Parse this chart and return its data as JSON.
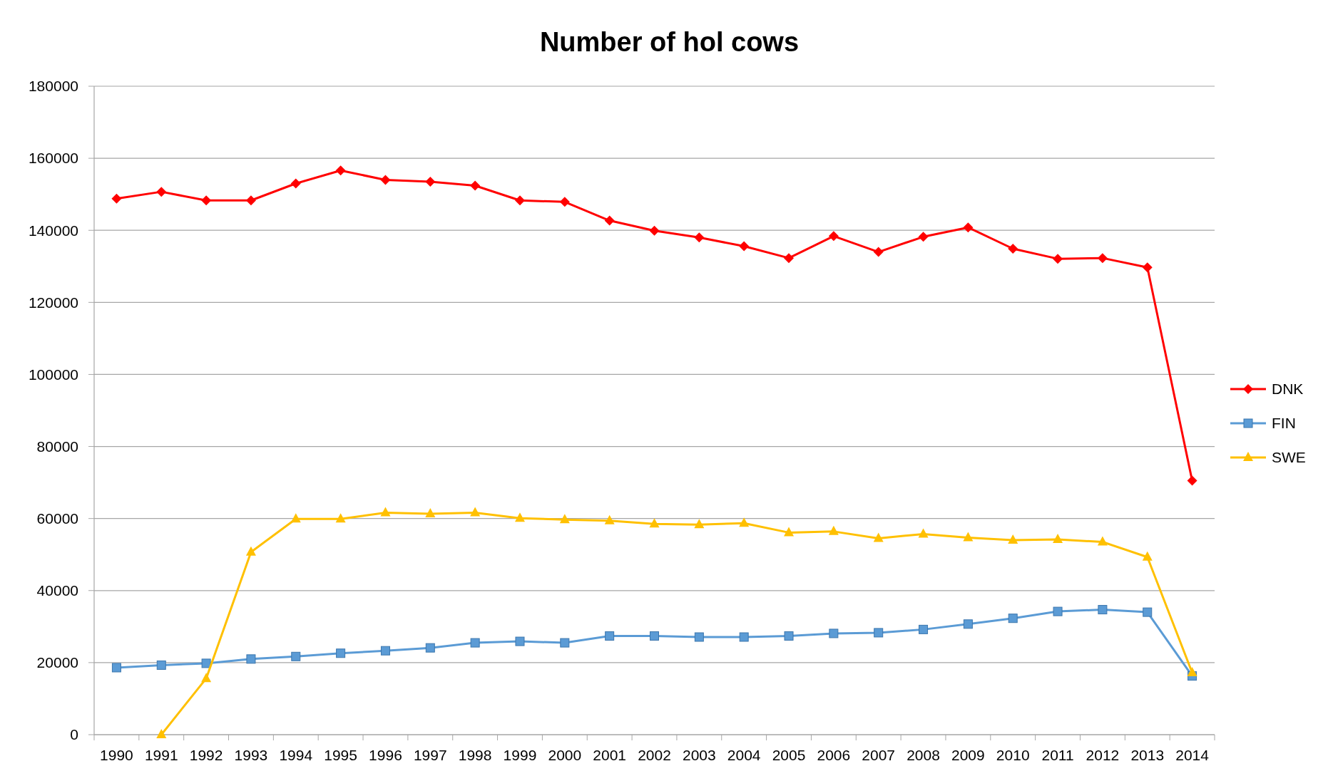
{
  "chart_data": {
    "type": "line",
    "title": "Number of hol cows",
    "categories": [
      "1990",
      "1991",
      "1992",
      "1993",
      "1994",
      "1995",
      "1996",
      "1997",
      "1998",
      "1999",
      "2000",
      "2001",
      "2002",
      "2003",
      "2004",
      "2005",
      "2006",
      "2007",
      "2008",
      "2009",
      "2010",
      "2011",
      "2012",
      "2013",
      "2014"
    ],
    "series": [
      {
        "name": "DNK",
        "color": "#ff0000",
        "marker": "diamond",
        "values": [
          148800,
          150700,
          148300,
          148300,
          153000,
          156600,
          154000,
          153500,
          152400,
          148300,
          147900,
          142700,
          139900,
          138000,
          135600,
          132300,
          138400,
          134000,
          138200,
          140800,
          134900,
          132100,
          132300,
          129700,
          70500
        ]
      },
      {
        "name": "FIN",
        "color": "#5b9bd5",
        "marker": "square",
        "values": [
          18600,
          19300,
          19800,
          21000,
          21700,
          22600,
          23300,
          24100,
          25500,
          25900,
          25500,
          27400,
          27400,
          27100,
          27100,
          27400,
          28100,
          28300,
          29200,
          30700,
          32300,
          34200,
          34700,
          34000,
          16300
        ]
      },
      {
        "name": "SWE",
        "color": "#ffc000",
        "marker": "triangle",
        "values": [
          null,
          0,
          15600,
          50700,
          59900,
          59900,
          61600,
          61300,
          61600,
          60100,
          59700,
          59400,
          58500,
          58300,
          58700,
          56100,
          56400,
          54500,
          55700,
          54700,
          54000,
          54200,
          53500,
          49300,
          17200
        ]
      }
    ],
    "ylim": [
      0,
      180000
    ],
    "yticks": [
      0,
      20000,
      40000,
      60000,
      80000,
      100000,
      120000,
      140000,
      160000,
      180000
    ],
    "grid": "y",
    "legend": "right"
  }
}
